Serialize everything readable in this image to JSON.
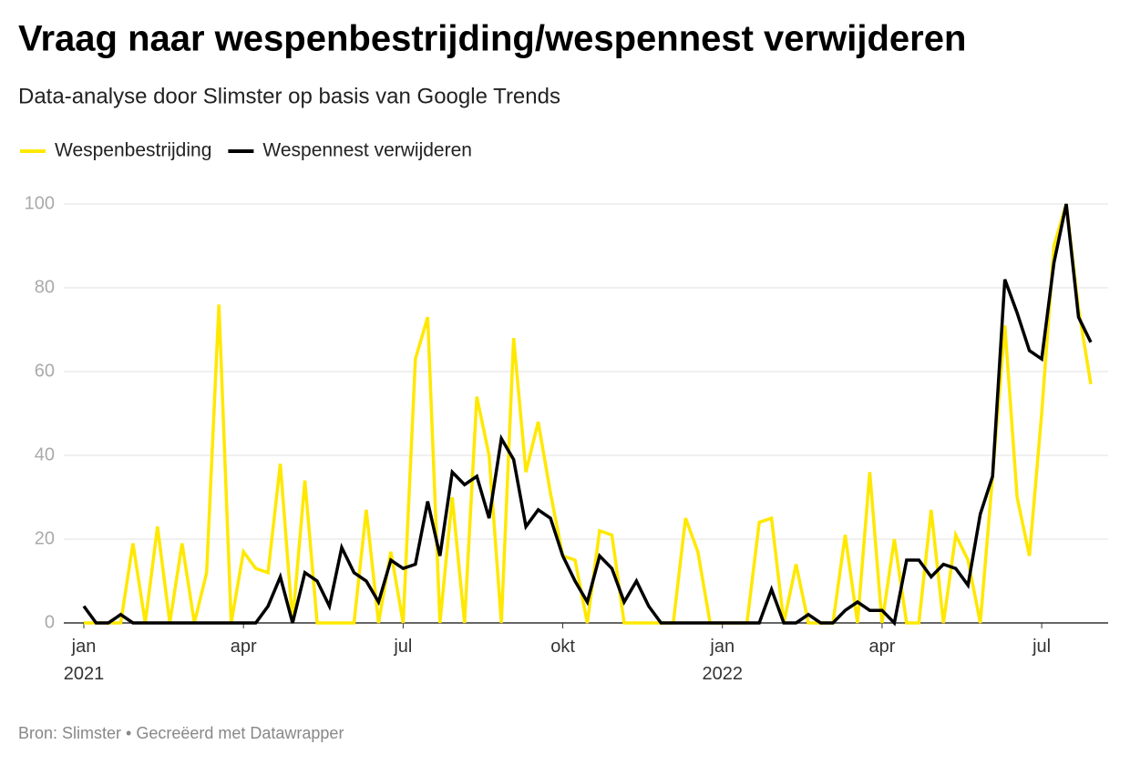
{
  "chart_data": {
    "type": "line",
    "title": "Vraag naar wespenbestrijding/wespennest verwijderen",
    "subtitle": "Data-analyse door Slimster op basis van Google Trends",
    "source": "Bron: Slimster • Gecreëerd met Datawrapper",
    "categories": [
      "jan\n2021",
      null,
      null,
      null,
      null,
      null,
      null,
      null,
      null,
      null,
      null,
      null,
      null,
      "apr",
      null,
      null,
      null,
      null,
      null,
      null,
      null,
      null,
      null,
      null,
      null,
      null,
      "jul",
      null,
      null,
      null,
      null,
      null,
      null,
      null,
      null,
      null,
      null,
      null,
      null,
      "okt",
      null,
      null,
      null,
      null,
      null,
      null,
      null,
      null,
      null,
      null,
      null,
      null,
      "jan\n2022",
      null,
      null,
      null,
      null,
      null,
      null,
      null,
      null,
      null,
      null,
      null,
      null,
      "apr",
      null,
      null,
      null,
      null,
      null,
      null,
      null,
      null,
      null,
      null,
      null,
      null,
      "jul",
      null,
      null,
      null,
      null
    ],
    "series": [
      {
        "name": "Wespenbestrijding",
        "color": "#ffe800",
        "values": [
          0,
          0,
          0,
          0,
          19,
          0,
          23,
          0,
          19,
          0,
          12,
          76,
          0,
          17,
          13,
          12,
          38,
          0,
          34,
          0,
          0,
          0,
          0,
          27,
          0,
          17,
          0,
          63,
          73,
          0,
          30,
          0,
          54,
          40,
          0,
          68,
          36,
          48,
          31,
          16,
          15,
          0,
          22,
          21,
          0,
          0,
          0,
          0,
          0,
          25,
          17,
          0,
          0,
          0,
          0,
          24,
          25,
          0,
          14,
          0,
          0,
          0,
          21,
          0,
          36,
          0,
          20,
          0,
          0,
          27,
          0,
          21,
          15,
          0,
          35,
          71,
          30,
          16,
          50,
          90,
          100,
          75,
          57
        ]
      },
      {
        "name": "Wespennest verwijderen",
        "color": "#000000",
        "values": [
          4,
          0,
          0,
          2,
          0,
          0,
          0,
          0,
          0,
          0,
          0,
          0,
          0,
          0,
          0,
          4,
          11,
          0,
          12,
          10,
          4,
          18,
          12,
          10,
          5,
          15,
          13,
          14,
          29,
          16,
          36,
          33,
          35,
          25,
          44,
          39,
          23,
          27,
          25,
          16,
          10,
          5,
          16,
          13,
          5,
          10,
          4,
          0,
          0,
          0,
          0,
          0,
          0,
          0,
          0,
          0,
          8,
          0,
          0,
          2,
          0,
          0,
          3,
          5,
          3,
          3,
          0,
          15,
          15,
          11,
          14,
          13,
          9,
          26,
          35,
          82,
          74,
          65,
          63,
          86,
          100,
          73,
          67
        ]
      }
    ],
    "ylim": [
      0,
      100
    ],
    "yticks": [
      0,
      20,
      40,
      60,
      80,
      100
    ],
    "grid": true,
    "legend": "top-left"
  }
}
